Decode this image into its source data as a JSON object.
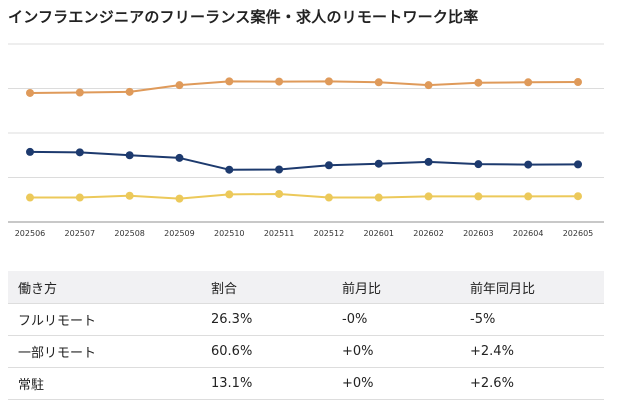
{
  "title": "インフラエンジニアのフリーランス案件・求人のリモートワーク比率",
  "chart_data": {
    "type": "line",
    "title": "インフラエンジニアのフリーランス案件・求人のリモートワーク比率",
    "x": [
      "202506",
      "202507",
      "202508",
      "202509",
      "202510",
      "202511",
      "202512",
      "202601",
      "202602",
      "202603",
      "202604",
      "202605"
    ],
    "ylim": [
      0,
      80
    ],
    "grid": true,
    "legend": "none",
    "series": [
      {
        "color": "#df9a5a",
        "values": [
          58.0,
          58.2,
          58.5,
          61.5,
          63.2,
          63.1,
          63.2,
          62.8,
          61.5,
          62.6,
          62.8,
          62.9
        ]
      },
      {
        "color": "#1d3a6e",
        "values": [
          31.5,
          31.3,
          30.0,
          28.8,
          23.5,
          23.6,
          25.5,
          26.2,
          27.0,
          26.0,
          25.8,
          25.9
        ]
      },
      {
        "color": "#ecc95a",
        "values": [
          11.0,
          11.0,
          11.8,
          10.5,
          12.4,
          12.6,
          11.0,
          11.0,
          11.5,
          11.5,
          11.5,
          11.6
        ]
      }
    ]
  },
  "table": {
    "headers": [
      "働き方",
      "割合",
      "前月比",
      "前年同月比"
    ],
    "rows": [
      [
        "フルリモート",
        "26.3%",
        "-0%",
        "-5%"
      ],
      [
        "一部リモート",
        "60.6%",
        "+0%",
        "+2.4%"
      ],
      [
        "常駐",
        "13.1%",
        "+0%",
        "+2.6%"
      ]
    ]
  }
}
